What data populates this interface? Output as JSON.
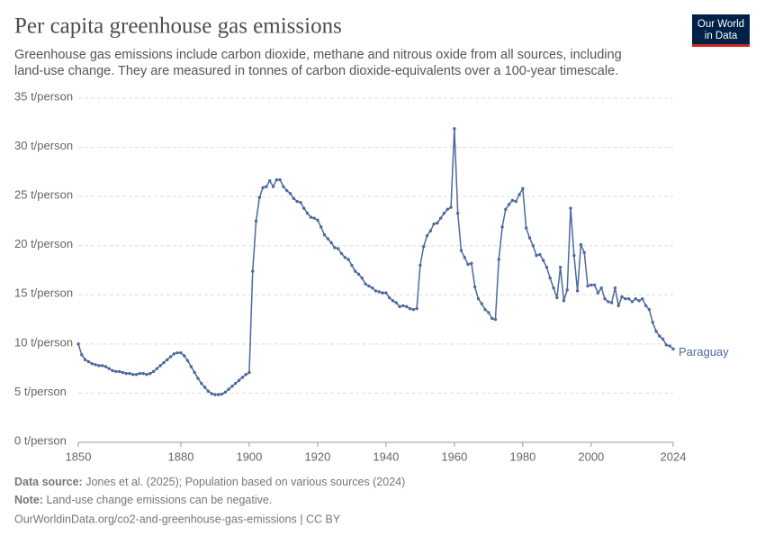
{
  "chart_data": {
    "type": "line",
    "title": "Per capita greenhouse gas emissions",
    "subtitle": [
      "Greenhouse gas emissions include carbon dioxide, methane and nitrous oxide from all sources, including",
      "land-use change. They are measured in tonnes of carbon dioxide-equivalents over a 100-year timescale."
    ],
    "logo": [
      "Our World",
      "in Data"
    ],
    "source_label": "Data source:",
    "source": "Jones et al. (2025); Population based on various sources (2024)",
    "note_label": "Note:",
    "note": "Land-use change emissions can be negative.",
    "url": "OurWorldinData.org/co2-and-greenhouse-gas-emissions | CC BY",
    "x": [
      1850,
      1851,
      1852,
      1853,
      1854,
      1855,
      1856,
      1857,
      1858,
      1859,
      1860,
      1861,
      1862,
      1863,
      1864,
      1865,
      1866,
      1867,
      1868,
      1869,
      1870,
      1871,
      1872,
      1873,
      1874,
      1875,
      1876,
      1877,
      1878,
      1879,
      1880,
      1881,
      1882,
      1883,
      1884,
      1885,
      1886,
      1887,
      1888,
      1889,
      1890,
      1891,
      1892,
      1893,
      1894,
      1895,
      1896,
      1897,
      1898,
      1899,
      1900,
      1901,
      1902,
      1903,
      1904,
      1905,
      1906,
      1907,
      1908,
      1909,
      1910,
      1911,
      1912,
      1913,
      1914,
      1915,
      1916,
      1917,
      1918,
      1919,
      1920,
      1921,
      1922,
      1923,
      1924,
      1925,
      1926,
      1927,
      1928,
      1929,
      1930,
      1931,
      1932,
      1933,
      1934,
      1935,
      1936,
      1937,
      1938,
      1939,
      1940,
      1941,
      1942,
      1943,
      1944,
      1945,
      1946,
      1947,
      1948,
      1949,
      1950,
      1951,
      1952,
      1953,
      1954,
      1955,
      1956,
      1957,
      1958,
      1959,
      1960,
      1961,
      1962,
      1963,
      1964,
      1965,
      1966,
      1967,
      1968,
      1969,
      1970,
      1971,
      1972,
      1973,
      1974,
      1975,
      1976,
      1977,
      1978,
      1979,
      1980,
      1981,
      1982,
      1983,
      1984,
      1985,
      1986,
      1987,
      1988,
      1989,
      1990,
      1991,
      1992,
      1993,
      1994,
      1995,
      1996,
      1997,
      1998,
      1999,
      2000,
      2001,
      2002,
      2003,
      2004,
      2005,
      2006,
      2007,
      2008,
      2009,
      2010,
      2011,
      2012,
      2013,
      2014,
      2015,
      2016,
      2017,
      2018,
      2019,
      2020,
      2021,
      2022,
      2023,
      2024
    ],
    "series": [
      {
        "name": "Paraguay",
        "color": "#4c6a9c",
        "values": [
          10.0,
          8.9,
          8.4,
          8.2,
          8.0,
          7.9,
          7.8,
          7.8,
          7.7,
          7.5,
          7.3,
          7.2,
          7.2,
          7.1,
          7.0,
          7.0,
          6.9,
          6.9,
          7.0,
          7.0,
          6.9,
          7.0,
          7.2,
          7.5,
          7.8,
          8.1,
          8.4,
          8.7,
          9.0,
          9.1,
          9.1,
          8.8,
          8.3,
          7.7,
          7.1,
          6.5,
          6.0,
          5.6,
          5.2,
          4.95,
          4.85,
          4.85,
          4.9,
          5.1,
          5.4,
          5.7,
          6.0,
          6.3,
          6.6,
          6.9,
          7.1,
          17.4,
          22.5,
          24.9,
          25.9,
          26.0,
          26.6,
          26.0,
          26.7,
          26.7,
          26.0,
          25.6,
          25.3,
          24.8,
          24.5,
          24.4,
          23.8,
          23.3,
          22.9,
          22.8,
          22.6,
          21.9,
          21.1,
          20.7,
          20.3,
          19.8,
          19.7,
          19.2,
          18.8,
          18.6,
          18.0,
          17.4,
          17.1,
          16.7,
          16.1,
          15.9,
          15.7,
          15.4,
          15.3,
          15.2,
          15.2,
          14.7,
          14.4,
          14.2,
          13.8,
          13.9,
          13.8,
          13.6,
          13.5,
          13.6,
          18.0,
          19.9,
          21.0,
          21.5,
          22.2,
          22.3,
          22.8,
          23.3,
          23.7,
          23.9,
          31.9,
          23.3,
          19.5,
          18.8,
          18.1,
          18.2,
          15.8,
          14.6,
          14.1,
          13.5,
          13.2,
          12.6,
          12.5,
          18.6,
          21.9,
          23.7,
          24.2,
          24.6,
          24.5,
          25.2,
          25.8,
          21.8,
          20.8,
          20.0,
          19.0,
          19.1,
          18.5,
          17.8,
          16.7,
          15.7,
          14.7,
          17.8,
          14.4,
          15.5,
          23.8,
          19.0,
          15.4,
          20.1,
          19.3,
          15.9,
          16.0,
          16.0,
          15.2,
          15.7,
          14.6,
          14.3,
          14.2,
          15.7,
          13.9,
          14.8,
          14.6,
          14.6,
          14.3,
          14.6,
          14.4,
          14.6,
          13.9,
          13.5,
          12.2,
          11.3,
          10.8,
          10.5,
          9.9,
          9.8,
          9.5
        ]
      }
    ],
    "xlim": [
      1850,
      2024
    ],
    "xticks": [
      1850,
      1880,
      1900,
      1920,
      1940,
      1960,
      1980,
      2000,
      2024
    ],
    "ylim": [
      0,
      35
    ],
    "yticks": [
      {
        "value": 0,
        "label": "0 t/person"
      },
      {
        "value": 5,
        "label": "5 t/person"
      },
      {
        "value": 10,
        "label": "10 t/person"
      },
      {
        "value": 15,
        "label": "15 t/person"
      },
      {
        "value": 20,
        "label": "20 t/person"
      },
      {
        "value": 25,
        "label": "25 t/person"
      },
      {
        "value": 30,
        "label": "30 t/person"
      },
      {
        "value": 35,
        "label": "35 t/person"
      }
    ],
    "grid": true
  }
}
